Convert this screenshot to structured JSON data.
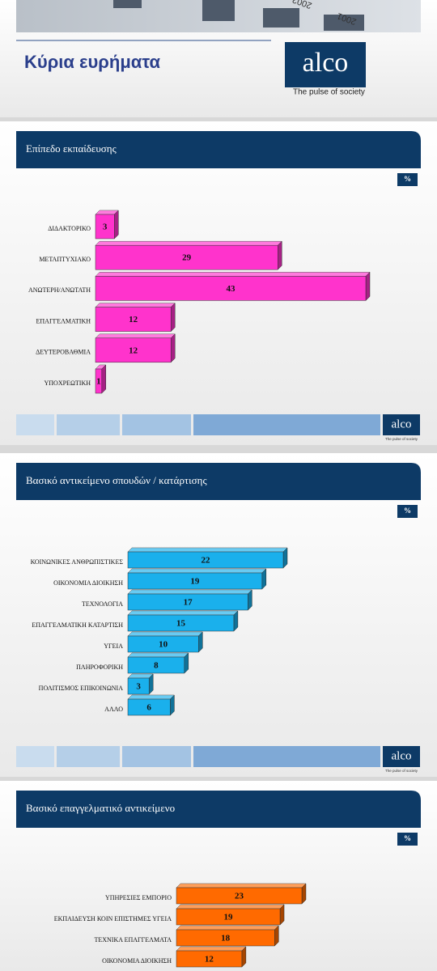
{
  "header": {
    "title": "Κύρια ευρήματα",
    "photo_labels": [
      "2002",
      "2001"
    ]
  },
  "logo": {
    "name": "alco",
    "tagline": "The pulse of society"
  },
  "chart_data": [
    {
      "type": "bar",
      "orientation": "horizontal",
      "title": "Επίπεδο εκπαίδευσης",
      "unit_label": "%",
      "categories": [
        "ΔΙΔΑΚΤΟΡΙΚΟ",
        "ΜΕΤΑΠΤΥΧΙΑΚΟ",
        "ΑΝΩΤΕΡΗ/ΑΝΩΤΑΤΗ",
        "ΕΠΑΓΓΕΛΜΑΤΙΚΗ",
        "ΔΕΥΤΕΡΟΒΑΘΜΙΑ",
        "ΥΠΟΧΡΕΩΤΙΚΗ"
      ],
      "values": [
        3,
        29,
        43,
        12,
        12,
        1
      ],
      "color": "#ff33cc"
    },
    {
      "type": "bar",
      "orientation": "horizontal",
      "title": "Βασικό αντικείμενο σπουδών / κατάρτισης",
      "unit_label": "%",
      "categories": [
        "ΚΟΙΝΩΝΙΚΕΣ ΑΝΘΡΩΠΙΣΤΙΚΕΣ",
        "ΟΙΚΟΝΟΜΙΑ ΔΙΟΙΚΗΣΗ",
        "ΤΕΧΝΟΛΟΓΙΑ",
        "ΕΠΑΓΓΕΛΜΑΤΙΚΗ ΚΑΤΑΡΤΙΣΗ",
        "ΥΓΕΙΑ",
        "ΠΛΗΡΟΦΟΡΙΚΗ",
        "ΠΟΛΙΤΙΣΜΟΣ ΕΠΙΚΟΙΝΩΝΙΑ",
        "ΑΛΛΟ"
      ],
      "values": [
        22,
        19,
        17,
        15,
        10,
        8,
        3,
        6
      ],
      "color": "#1ab0ec"
    },
    {
      "type": "bar",
      "orientation": "horizontal",
      "title": "Βασικό επαγγελματικό αντικείμενο",
      "unit_label": "%",
      "categories": [
        "ΥΠΗΡΕΣΙΕΣ ΕΜΠΟΡΙΟ",
        "ΕΚΠΑΙΔΕΥΣΗ ΚΟΙΝ ΕΠΙΣΤΗΜΕΣ ΥΓΕΙΑ",
        "ΤΕΧΝΙΚΑ ΕΠΑΓΓΕΛΜΑΤΑ",
        "ΟΙΚΟΝΟΜΙΑ ΔΙΟΙΚΗΣΗ"
      ],
      "values": [
        23,
        19,
        18,
        12
      ],
      "color": "#ff6a00"
    }
  ]
}
